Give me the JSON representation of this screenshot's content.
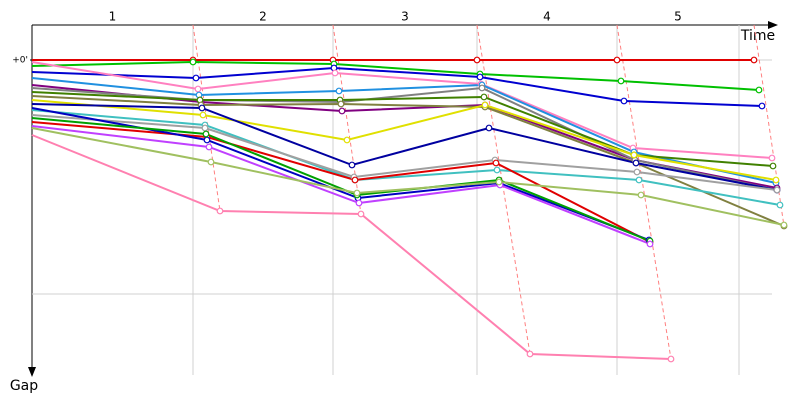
{
  "chart_data": {
    "type": "line",
    "xlabel": "Time",
    "ylabel": "Gap",
    "laps": [
      "1",
      "2",
      "3",
      "4",
      "5"
    ],
    "xlim": [
      0,
      740
    ],
    "xgrid": [
      161,
      301,
      445,
      585,
      707
    ],
    "ylim": [
      -20,
      315
    ],
    "yticks": [
      {
        "value": 0,
        "label": "+0'"
      }
    ],
    "ygrid": [
      0,
      234
    ],
    "series": [
      {
        "color": "#e00000",
        "x": [
          0,
          161,
          301,
          445,
          585,
          722
        ],
        "values": [
          0,
          0,
          0,
          0,
          0,
          0
        ]
      },
      {
        "color": "#00c000",
        "x": [
          0,
          161,
          302,
          448,
          589,
          727
        ],
        "values": [
          6,
          2,
          4,
          14,
          21,
          30
        ]
      },
      {
        "color": "#0000d0",
        "x": [
          0,
          164,
          302,
          448,
          592,
          730
        ],
        "values": [
          12,
          18,
          8,
          17,
          41,
          46
        ]
      },
      {
        "color": "#ff80c0",
        "x": [
          0,
          166,
          303,
          449,
          601,
          740
        ],
        "values": [
          2,
          29,
          13,
          24,
          88,
          98
        ]
      },
      {
        "color": "#2090e0",
        "x": [
          0,
          167,
          307,
          450,
          602,
          744
        ],
        "values": [
          18,
          35,
          31,
          25,
          92,
          123
        ]
      },
      {
        "color": "#800080",
        "x": [
          0,
          169,
          310,
          453,
          603,
          745
        ],
        "values": [
          25,
          42,
          51,
          45,
          100,
          128
        ]
      },
      {
        "color": "#808080",
        "x": [
          0,
          168,
          309,
          450,
          603,
          745
        ],
        "values": [
          28,
          40,
          42,
          28,
          100,
          130
        ]
      },
      {
        "color": "#408000",
        "x": [
          0,
          168,
          308,
          452,
          602,
          741
        ],
        "values": [
          32,
          40,
          40,
          37,
          95,
          106
        ]
      },
      {
        "color": "#808040",
        "x": [
          0,
          169,
          309,
          453,
          604,
          752
        ],
        "values": [
          36,
          45,
          44,
          47,
          103,
          166
        ]
      },
      {
        "color": "#e0e000",
        "x": [
          0,
          171,
          315,
          453,
          602,
          744
        ],
        "values": [
          40,
          55,
          80,
          45,
          95,
          120
        ]
      },
      {
        "color": "#0000a0",
        "x": [
          0,
          170,
          320,
          457,
          604,
          745
        ],
        "values": [
          44,
          48,
          105,
          68,
          103,
          130
        ]
      },
      {
        "color": "#40c0c0",
        "x": [
          0,
          173,
          323,
          465,
          607,
          748
        ],
        "values": [
          50,
          65,
          120,
          110,
          120,
          145
        ]
      },
      {
        "color": "#a0a0a0",
        "x": [
          0,
          173,
          322,
          463,
          605,
          745
        ],
        "values": [
          55,
          68,
          117,
          100,
          112,
          130
        ]
      },
      {
        "color": "#e00000",
        "x": [
          0,
          175,
          323,
          464,
          618
        ],
        "values": [
          62,
          77,
          120,
          103,
          182
        ]
      },
      {
        "color": "#0000c0",
        "x": [
          0,
          175,
          326,
          467,
          617
        ],
        "values": [
          48,
          80,
          138,
          123,
          180
        ]
      },
      {
        "color": "#00a000",
        "x": [
          0,
          174,
          325,
          467,
          618
        ],
        "values": [
          58,
          74,
          135,
          120,
          181
        ]
      },
      {
        "color": "#c040ff",
        "x": [
          0,
          177,
          327,
          468,
          618
        ],
        "values": [
          66,
          87,
          143,
          125,
          184
        ]
      },
      {
        "color": "#a0c060",
        "x": [
          0,
          179,
          325,
          467,
          609,
          752
        ],
        "values": [
          68,
          102,
          133,
          122,
          135,
          165
        ]
      },
      {
        "color": "#ff80b0",
        "x": [
          0,
          188,
          329,
          498,
          639
        ],
        "values": [
          75,
          151,
          154,
          294,
          299
        ]
      }
    ]
  }
}
